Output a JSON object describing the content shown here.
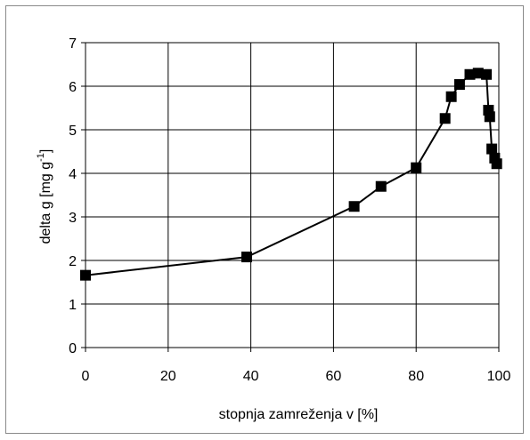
{
  "chart_data": {
    "type": "line",
    "xlabel": "stopnja  zamreženja v [%]",
    "ylabel": {
      "base": "delta g  [mg g",
      "sup": "-1",
      "end": "]"
    },
    "xlim": [
      0,
      100
    ],
    "ylim": [
      0,
      7
    ],
    "x_ticks": [
      0,
      20,
      40,
      60,
      80,
      100
    ],
    "y_ticks": [
      0,
      1,
      2,
      3,
      4,
      5,
      6,
      7
    ],
    "x_tick_labels": [
      "0",
      "20",
      "40",
      "60",
      "80",
      "100"
    ],
    "y_tick_labels": [
      "0",
      "1",
      "2",
      "3",
      "4",
      "5",
      "6",
      "7"
    ],
    "grid": true,
    "marker": "square",
    "line_color": "#000000",
    "marker_color": "#000000",
    "series": [
      {
        "points": [
          {
            "x": 0,
            "y": 1.66
          },
          {
            "x": 39,
            "y": 2.08
          },
          {
            "x": 65,
            "y": 3.24
          },
          {
            "x": 71.5,
            "y": 3.7
          },
          {
            "x": 80,
            "y": 4.13
          },
          {
            "x": 87,
            "y": 5.26
          },
          {
            "x": 88.5,
            "y": 5.76
          },
          {
            "x": 90.5,
            "y": 6.04
          },
          {
            "x": 93,
            "y": 6.27
          },
          {
            "x": 95,
            "y": 6.3
          },
          {
            "x": 97,
            "y": 6.27
          },
          {
            "x": 97.5,
            "y": 5.45
          },
          {
            "x": 97.8,
            "y": 5.3
          },
          {
            "x": 98.3,
            "y": 4.56
          },
          {
            "x": 99,
            "y": 4.35
          },
          {
            "x": 99.5,
            "y": 4.22
          }
        ]
      }
    ]
  }
}
